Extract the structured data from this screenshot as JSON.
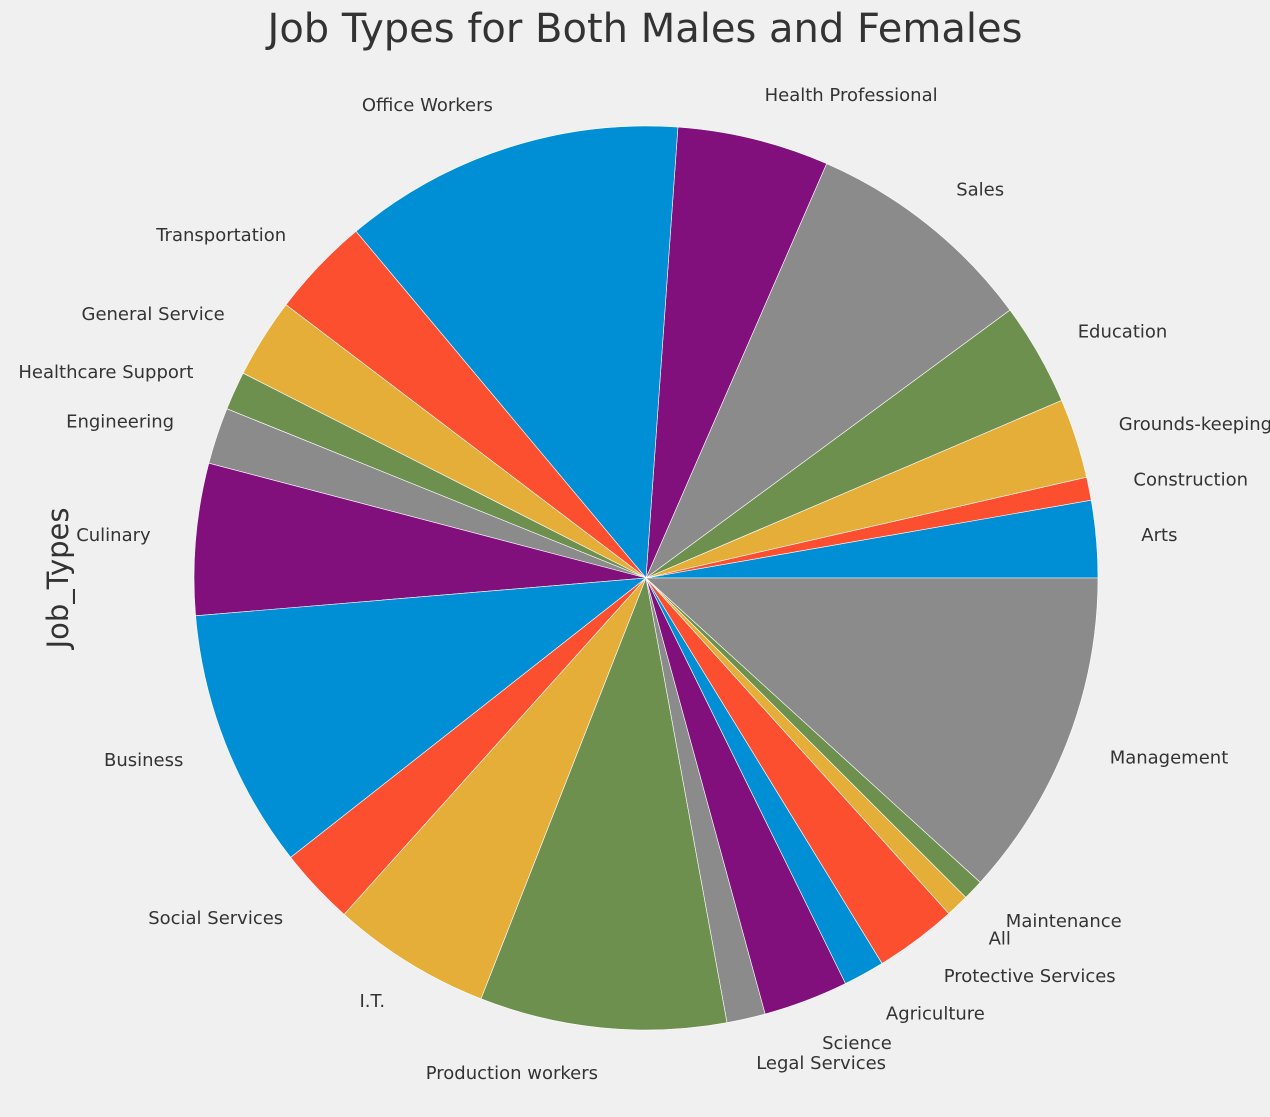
{
  "chart_data": {
    "type": "pie",
    "title": "Job Types for Both Males and Females",
    "ylabel": "Job_Types",
    "start_angle": 0,
    "direction": "counterclockwise",
    "slices": [
      {
        "label": "Arts",
        "value": 3.0,
        "color": "#008fd5"
      },
      {
        "label": "Construction",
        "value": 0.9,
        "color": "#fc4f30"
      },
      {
        "label": "Grounds-keeping",
        "value": 3.1,
        "color": "#e5ae38"
      },
      {
        "label": "Education",
        "value": 4.0,
        "color": "#6d904f"
      },
      {
        "label": "Sales",
        "value": 9.1,
        "color": "#8b8b8b"
      },
      {
        "label": "Health Professional",
        "value": 5.9,
        "color": "#810f7c"
      },
      {
        "label": "Office Workers",
        "value": 13.3,
        "color": "#008fd5"
      },
      {
        "label": "Transportation",
        "value": 3.9,
        "color": "#fc4f30"
      },
      {
        "label": "General Service",
        "value": 3.1,
        "color": "#e5ae38"
      },
      {
        "label": "Healthcare Support",
        "value": 1.5,
        "color": "#6d904f"
      },
      {
        "label": "Engineering",
        "value": 2.2,
        "color": "#8b8b8b"
      },
      {
        "label": "Culinary",
        "value": 5.9,
        "color": "#810f7c"
      },
      {
        "label": "Business",
        "value": 10.1,
        "color": "#008fd5"
      },
      {
        "label": "Social Services",
        "value": 3.0,
        "color": "#fc4f30"
      },
      {
        "label": "I.T.",
        "value": 6.2,
        "color": "#e5ae38"
      },
      {
        "label": "Production workers",
        "value": 9.6,
        "color": "#6d904f"
      },
      {
        "label": "Legal Services",
        "value": 1.5,
        "color": "#8b8b8b"
      },
      {
        "label": "Science",
        "value": 3.3,
        "color": "#810f7c"
      },
      {
        "label": "Agriculture",
        "value": 1.6,
        "color": "#008fd5"
      },
      {
        "label": "Protective Services",
        "value": 3.2,
        "color": "#fc4f30"
      },
      {
        "label": "All",
        "value": 0.9,
        "color": "#e5ae38"
      },
      {
        "label": "Maintenance",
        "value": 0.8,
        "color": "#6d904f"
      },
      {
        "label": "Management",
        "value": 12.8,
        "color": "#8b8b8b"
      }
    ]
  }
}
